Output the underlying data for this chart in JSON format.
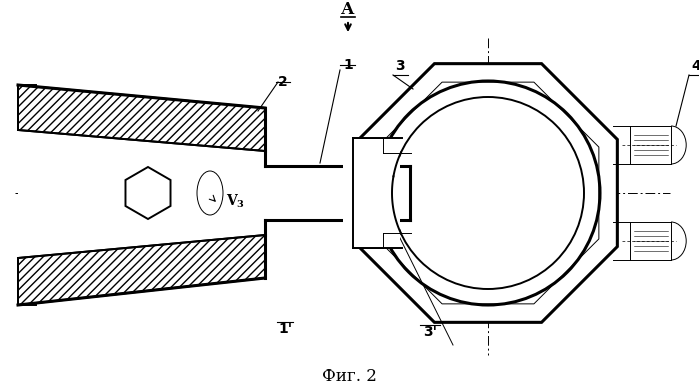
{
  "bg_color": "#ffffff",
  "title": "Фиг. 2",
  "label_A": "А",
  "label_1": "1",
  "label_2": "2",
  "label_3": "3",
  "label_4": "4",
  "label_1p": "1'",
  "label_3p": "3'",
  "fig_width": 6.99,
  "fig_height": 3.86,
  "dpi": 100
}
